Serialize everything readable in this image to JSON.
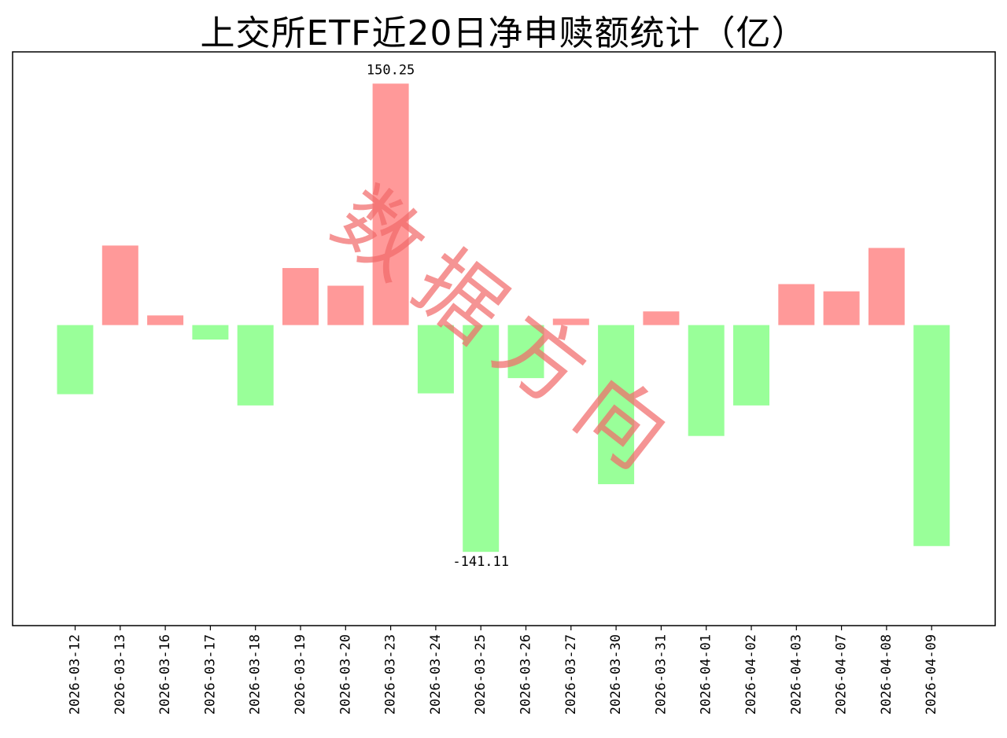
{
  "chart_data": {
    "type": "bar",
    "title": "上交所ETF近20日净申赎额统计（亿）",
    "categories": [
      "2026-03-12",
      "2026-03-13",
      "2026-03-16",
      "2026-03-17",
      "2026-03-18",
      "2026-03-19",
      "2026-03-20",
      "2026-03-23",
      "2026-03-24",
      "2026-03-25",
      "2026-03-26",
      "2026-03-27",
      "2026-03-30",
      "2026-03-31",
      "2026-04-01",
      "2026-04-02",
      "2026-04-03",
      "2026-04-07",
      "2026-04-08",
      "2026-04-09"
    ],
    "values": [
      -43,
      49.5,
      6,
      -9,
      -50,
      35.5,
      24.5,
      150.25,
      -42.5,
      -141.11,
      -33,
      4,
      -99,
      8.5,
      -69,
      -50,
      25.5,
      21,
      48,
      -137.5
    ],
    "data_labels": [
      {
        "index": 7,
        "text": "150.25"
      },
      {
        "index": 9,
        "text": "-141.11"
      }
    ],
    "ylim": [
      -187,
      170
    ],
    "xlabel": "",
    "ylabel": "",
    "grid": false,
    "colors": {
      "positive": "#ff9999",
      "negative": "#99ff99"
    },
    "watermark": "数据方向"
  }
}
